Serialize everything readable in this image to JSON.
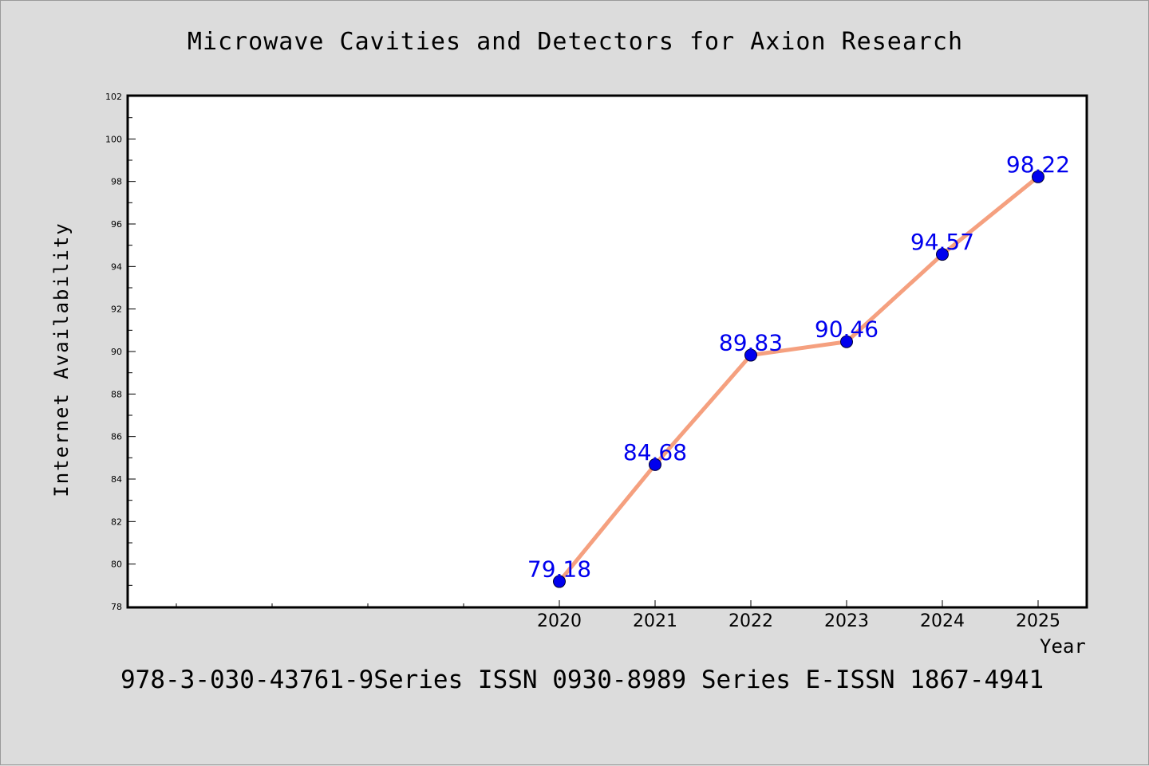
{
  "chart_data": {
    "type": "line",
    "title": "Microwave Cavities and Detectors for Axion Research",
    "xlabel": "Year",
    "ylabel": "Internet Availability",
    "categories": [
      "2020",
      "2021",
      "2022",
      "2023",
      "2024",
      "2025"
    ],
    "series": [
      {
        "values": [
          79.18,
          84.68,
          89.83,
          90.46,
          94.57,
          98.22
        ]
      }
    ],
    "ylim": [
      78,
      102
    ],
    "yticks": [
      78,
      80,
      82,
      84,
      86,
      88,
      90,
      92,
      94,
      96,
      98,
      100,
      102
    ],
    "grid": false,
    "legend": "none",
    "line_color": "#f5a07f",
    "marker_color": "#0000ee",
    "label_color": "#0000ee"
  },
  "footer": {
    "text": "978-3-030-43761-9Series ISSN 0930-8989 Series E-ISSN 1867-4941"
  }
}
